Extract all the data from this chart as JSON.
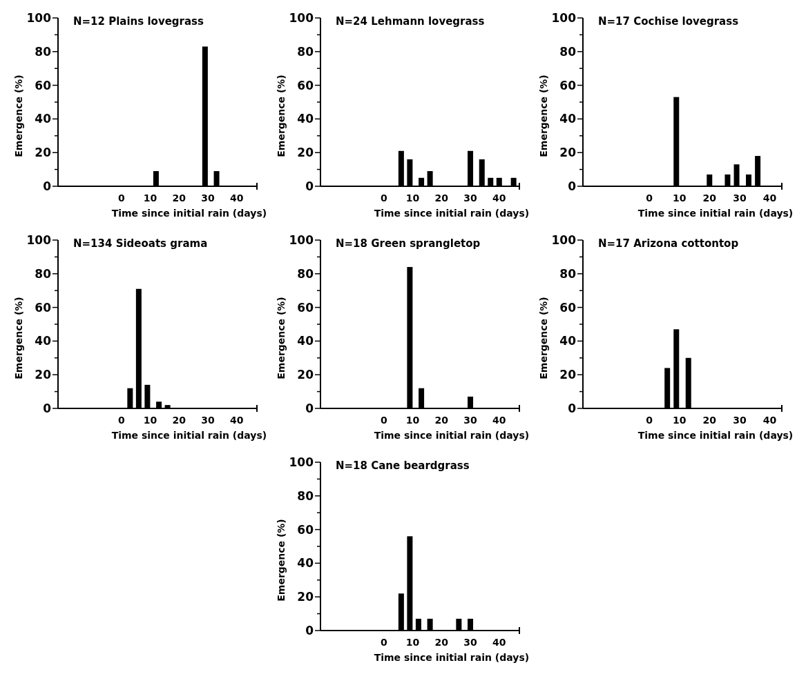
{
  "chart_data": [
    {
      "type": "bar",
      "title": "N=12   Plains lovegrass",
      "xlabel": "Time since initial rain (days)",
      "ylabel": "Emergence (%)",
      "x": [
        12,
        29,
        33
      ],
      "values": [
        9,
        83,
        9
      ],
      "color": "#000000",
      "xlim": [
        -22,
        47
      ],
      "xticks": [
        0,
        10,
        20,
        30,
        40
      ],
      "ylim": [
        0,
        100
      ],
      "yticks": [
        0,
        {
          "value": 10,
          "label": null
        },
        20,
        {
          "value": 30,
          "label": null
        },
        40,
        {
          "value": 50,
          "label": null
        },
        60,
        {
          "value": 70,
          "label": null
        },
        80,
        {
          "value": 90,
          "label": null
        },
        100
      ],
      "grid": false
    },
    {
      "type": "bar",
      "title": "N=24   Lehmann lovegrass",
      "xlabel": "Time since initial rain (days)",
      "ylabel": "Emergence (%)",
      "x": [
        6,
        9,
        13,
        16,
        30,
        34,
        37,
        40,
        45
      ],
      "values": [
        21,
        16,
        5,
        9,
        21,
        16,
        5,
        5,
        5
      ],
      "color": "#000000",
      "xlim": [
        -22,
        47
      ],
      "xticks": [
        0,
        10,
        20,
        30,
        40
      ],
      "ylim": [
        0,
        100
      ],
      "yticks": [
        0,
        {
          "value": 10,
          "label": null
        },
        20,
        {
          "value": 30,
          "label": null
        },
        40,
        {
          "value": 50,
          "label": null
        },
        60,
        {
          "value": 70,
          "label": null
        },
        80,
        {
          "value": 90,
          "label": null
        },
        100
      ],
      "grid": false
    },
    {
      "type": "bar",
      "title": "N=17   Cochise lovegrass",
      "xlabel": "Time since initial rain (days)",
      "ylabel": "Emergence (%)",
      "x": [
        9,
        20,
        26,
        29,
        33,
        36
      ],
      "values": [
        53,
        7,
        7,
        13,
        7,
        18
      ],
      "color": "#000000",
      "xlim": [
        -22,
        44
      ],
      "xticks": [
        0,
        10,
        20,
        30,
        40
      ],
      "ylim": [
        0,
        100
      ],
      "yticks": [
        0,
        {
          "value": 10,
          "label": null
        },
        20,
        {
          "value": 30,
          "label": null
        },
        40,
        {
          "value": 50,
          "label": null
        },
        60,
        {
          "value": 70,
          "label": null
        },
        80,
        {
          "value": 90,
          "label": null
        },
        100
      ],
      "grid": false
    },
    {
      "type": "bar",
      "title": "N=134   Sideoats grama",
      "xlabel": "Time since initial rain (days)",
      "ylabel": "Emergence (%)",
      "x": [
        3,
        6,
        9,
        13,
        16
      ],
      "values": [
        12,
        71,
        14,
        4,
        2
      ],
      "color": "#000000",
      "xlim": [
        -22,
        47
      ],
      "xticks": [
        0,
        10,
        20,
        30,
        40
      ],
      "ylim": [
        0,
        100
      ],
      "yticks": [
        0,
        {
          "value": 10,
          "label": null
        },
        20,
        {
          "value": 30,
          "label": null
        },
        40,
        {
          "value": 50,
          "label": null
        },
        60,
        {
          "value": 70,
          "label": null
        },
        80,
        {
          "value": 90,
          "label": null
        },
        100
      ],
      "grid": false
    },
    {
      "type": "bar",
      "title": "N=18   Green sprangletop",
      "xlabel": "Time since initial rain (days)",
      "ylabel": "Emergence (%)",
      "x": [
        9,
        13,
        30
      ],
      "values": [
        84,
        12,
        7
      ],
      "color": "#000000",
      "xlim": [
        -22,
        47
      ],
      "xticks": [
        0,
        10,
        20,
        30,
        40
      ],
      "ylim": [
        0,
        100
      ],
      "yticks": [
        0,
        {
          "value": 10,
          "label": null
        },
        20,
        {
          "value": 30,
          "label": null
        },
        40,
        {
          "value": 50,
          "label": null
        },
        60,
        {
          "value": 70,
          "label": null
        },
        80,
        {
          "value": 90,
          "label": null
        },
        100
      ],
      "grid": false
    },
    {
      "type": "bar",
      "title": "N=17   Arizona cottontop",
      "xlabel": "Time since initial rain (days)",
      "ylabel": "Emergence (%)",
      "x": [
        6,
        9,
        13
      ],
      "values": [
        24,
        47,
        30
      ],
      "color": "#000000",
      "xlim": [
        -22,
        44
      ],
      "xticks": [
        0,
        10,
        20,
        30,
        40
      ],
      "ylim": [
        0,
        100
      ],
      "yticks": [
        0,
        {
          "value": 10,
          "label": null
        },
        20,
        {
          "value": 30,
          "label": null
        },
        40,
        {
          "value": 50,
          "label": null
        },
        60,
        {
          "value": 70,
          "label": null
        },
        80,
        {
          "value": 90,
          "label": null
        },
        100
      ],
      "grid": false
    },
    {
      "type": "bar",
      "title": "N=18   Cane beardgrass",
      "xlabel": "Time since initial rain (days)",
      "ylabel": "Emergence (%)",
      "x": [
        6,
        9,
        12,
        16,
        26,
        30
      ],
      "values": [
        22,
        56,
        7,
        7,
        7,
        7
      ],
      "color": "#000000",
      "xlim": [
        -22,
        47
      ],
      "xticks": [
        0,
        10,
        20,
        30,
        40
      ],
      "ylim": [
        0,
        100
      ],
      "yticks": [
        0,
        {
          "value": 10,
          "label": null
        },
        20,
        {
          "value": 30,
          "label": null
        },
        40,
        {
          "value": 50,
          "label": null
        },
        60,
        {
          "value": 70,
          "label": null
        },
        80,
        {
          "value": 90,
          "label": null
        },
        100
      ],
      "grid": false
    }
  ]
}
